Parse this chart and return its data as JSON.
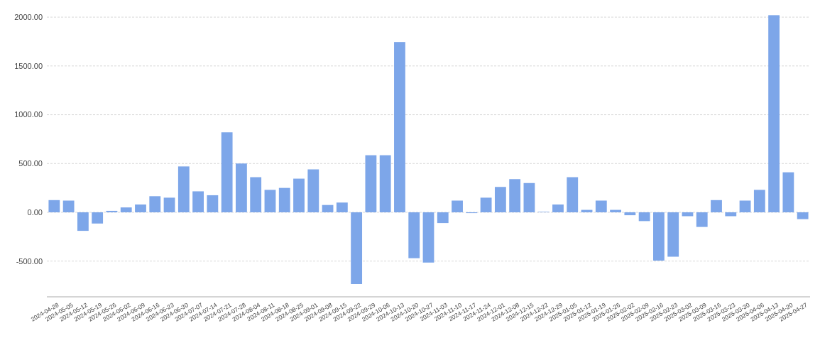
{
  "chart_data": {
    "type": "bar",
    "color": "#7da6e9",
    "grid": "y",
    "categories": [
      "2024-04-28",
      "2024-05-05",
      "2024-05-12",
      "2024-05-19",
      "2024-05-26",
      "2024-06-02",
      "2024-06-09",
      "2024-06-16",
      "2024-06-23",
      "2024-06-30",
      "2024-07-07",
      "2024-07-14",
      "2024-07-21",
      "2024-07-28",
      "2024-08-04",
      "2024-08-11",
      "2024-08-18",
      "2024-08-25",
      "2024-09-01",
      "2024-09-08",
      "2024-09-15",
      "2024-09-22",
      "2024-09-29",
      "2024-10-06",
      "2024-10-13",
      "2024-10-20",
      "2024-10-27",
      "2024-11-03",
      "2024-11-10",
      "2024-11-17",
      "2024-11-24",
      "2024-12-01",
      "2024-12-08",
      "2024-12-15",
      "2024-12-22",
      "2024-12-29",
      "2025-01-05",
      "2025-01-12",
      "2025-01-19",
      "2025-01-26",
      "2025-02-02",
      "2025-02-09",
      "2025-02-16",
      "2025-02-23",
      "2025-03-02",
      "2025-03-09",
      "2025-03-16",
      "2025-03-23",
      "2025-03-30",
      "2025-04-06",
      "2025-04-13",
      "2025-04-20",
      "2025-04-27"
    ],
    "values": [
      125,
      120,
      -190,
      -115,
      15,
      50,
      80,
      165,
      150,
      470,
      215,
      175,
      820,
      500,
      360,
      230,
      250,
      345,
      440,
      75,
      100,
      -735,
      585,
      585,
      1745,
      -470,
      -515,
      -110,
      120,
      -8,
      150,
      260,
      340,
      300,
      5,
      80,
      360,
      25,
      120,
      25,
      -30,
      -90,
      -495,
      -455,
      -40,
      -150,
      125,
      -40,
      120,
      230,
      2020,
      410,
      -70
    ],
    "ylim": [
      -866,
      2030
    ],
    "yticks": [
      {
        "value": -500,
        "label": "-500.00"
      },
      {
        "value": 0,
        "label": "0.00"
      },
      {
        "value": 500,
        "label": "500.00"
      },
      {
        "value": 1000,
        "label": "1000.00"
      },
      {
        "value": 1500,
        "label": "1500.00"
      },
      {
        "value": 2000,
        "label": "2000.00"
      }
    ]
  }
}
